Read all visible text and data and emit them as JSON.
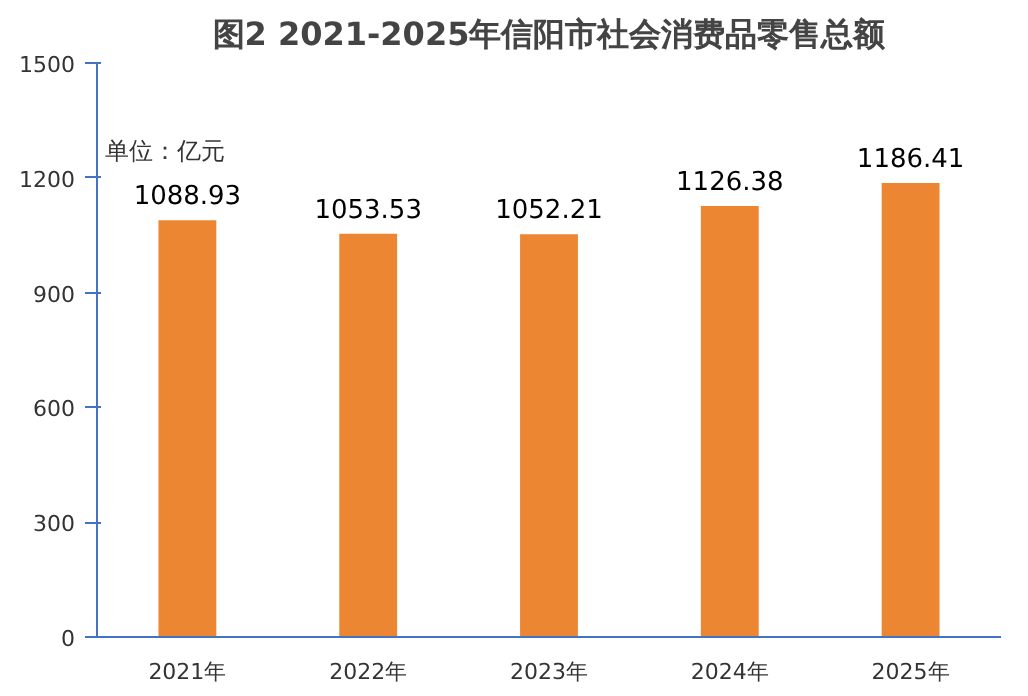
{
  "chart_data": {
    "type": "bar",
    "title": "图2 2021-2025年信阳市社会消费品零售总额",
    "categories": [
      "2021年",
      "2022年",
      "2023年",
      "2024年",
      "2025年"
    ],
    "values": [
      1088.93,
      1053.53,
      1052.21,
      1126.38,
      1186.41
    ],
    "color": "#ed8633",
    "ylim": [
      0,
      1500
    ],
    "yticks": [
      0,
      300,
      600,
      900,
      1200,
      1500
    ],
    "data_labels": true,
    "annotations": [
      "单位：亿元"
    ]
  }
}
